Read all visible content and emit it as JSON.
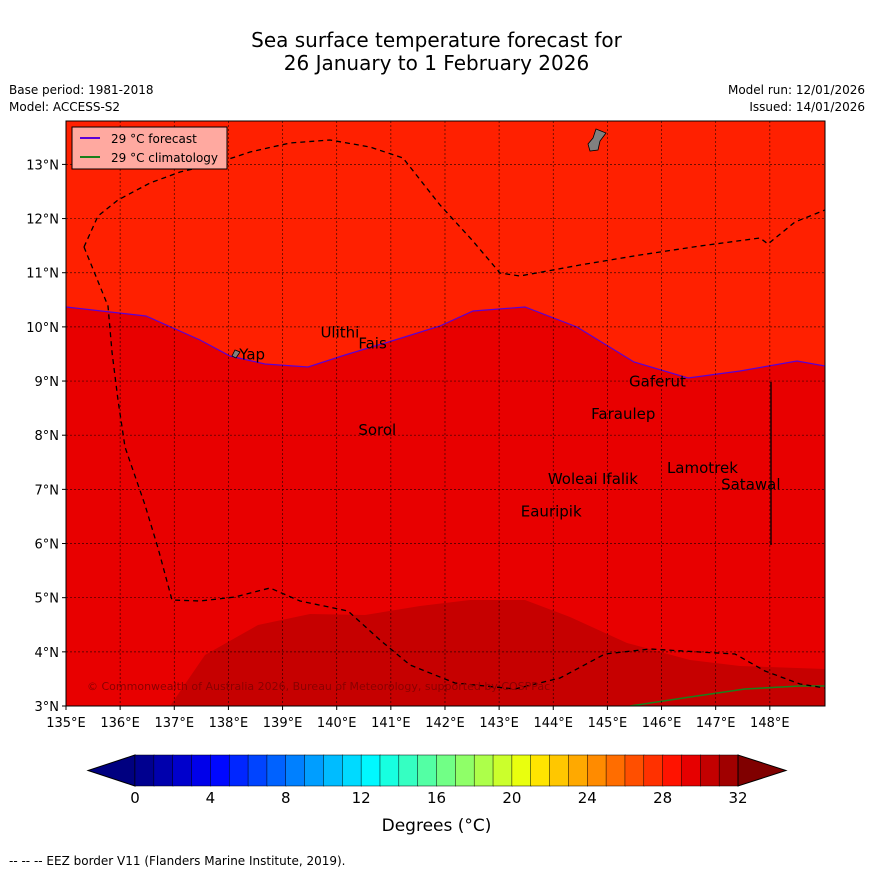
{
  "title": {
    "line1": "Sea surface temperature forecast for",
    "line2": "26 January to 1 February 2026"
  },
  "meta": {
    "base_period": "Base period: 1981-2018",
    "model": "Model: ACCESS-S2",
    "model_run": "Model run: 12/01/2026",
    "issued": "Issued: 14/01/2026"
  },
  "legend": {
    "forecast_label": "29 °C  forecast",
    "climatology_label": "29 °C  climatology",
    "forecast_color": "#5a00d6",
    "climatology_color": "#1a7f1a"
  },
  "map": {
    "lon_range": [
      135,
      149
    ],
    "lat_range": [
      3,
      13.8
    ],
    "lon_ticks": [
      "135°E",
      "136°E",
      "137°E",
      "138°E",
      "139°E",
      "140°E",
      "141°E",
      "142°E",
      "143°E",
      "144°E",
      "145°E",
      "146°E",
      "147°E",
      "148°E"
    ],
    "lat_ticks": [
      "3°N",
      "4°N",
      "5°N",
      "6°N",
      "7°N",
      "8°N",
      "9°N",
      "10°N",
      "11°N",
      "12°N",
      "13°N"
    ],
    "colors": {
      "warm_28_29": "#ff2000",
      "warm_29_30": "#e80000",
      "warm_30_31": "#c60000",
      "land": "#808080"
    },
    "places": [
      {
        "name": "Ulithi",
        "lon": 139.7,
        "lat": 9.8
      },
      {
        "name": "Fais",
        "lon": 140.4,
        "lat": 9.6
      },
      {
        "name": "Yap",
        "lon": 138.2,
        "lat": 9.4
      },
      {
        "name": "Gaferut",
        "lon": 145.4,
        "lat": 8.9
      },
      {
        "name": "Faraulep",
        "lon": 144.7,
        "lat": 8.3
      },
      {
        "name": "Sorol",
        "lon": 140.4,
        "lat": 8.0
      },
      {
        "name": "Lamotrek",
        "lon": 146.1,
        "lat": 7.3
      },
      {
        "name": "Woleai",
        "lon": 143.9,
        "lat": 7.1
      },
      {
        "name": "Ifalik",
        "lon": 144.9,
        "lat": 7.1
      },
      {
        "name": "Satawal",
        "lon": 147.1,
        "lat": 7.0
      },
      {
        "name": "Eauripik",
        "lon": 143.4,
        "lat": 6.5
      }
    ],
    "copyright": "© Commonwealth of Australia 2026, Bureau of Meteorology, supported by COSPPac"
  },
  "colorbar": {
    "ticks": [
      "0",
      "4",
      "8",
      "12",
      "16",
      "20",
      "24",
      "28",
      "32"
    ],
    "unit_label": "Degrees (°C)",
    "under_color": "#000080",
    "over_color": "#800000",
    "colors": [
      "#00008f",
      "#0000ad",
      "#0000cc",
      "#0000ea",
      "#0008ff",
      "#0026ff",
      "#0044ff",
      "#0062ff",
      "#0080ff",
      "#009eff",
      "#00bcff",
      "#00daff",
      "#00f8ff",
      "#17ffe0",
      "#35ffc2",
      "#53ffa4",
      "#71ff86",
      "#8fff68",
      "#adff4a",
      "#cbff2c",
      "#e9ff0e",
      "#ffe500",
      "#ffc700",
      "#ffa900",
      "#ff8b00",
      "#ff6d00",
      "#ff4f00",
      "#ff3100",
      "#ff1300",
      "#e60000",
      "#c30000",
      "#a00000"
    ]
  },
  "footer": "--  --  -- EEZ border V11 (Flanders Marine Institute, 2019)."
}
